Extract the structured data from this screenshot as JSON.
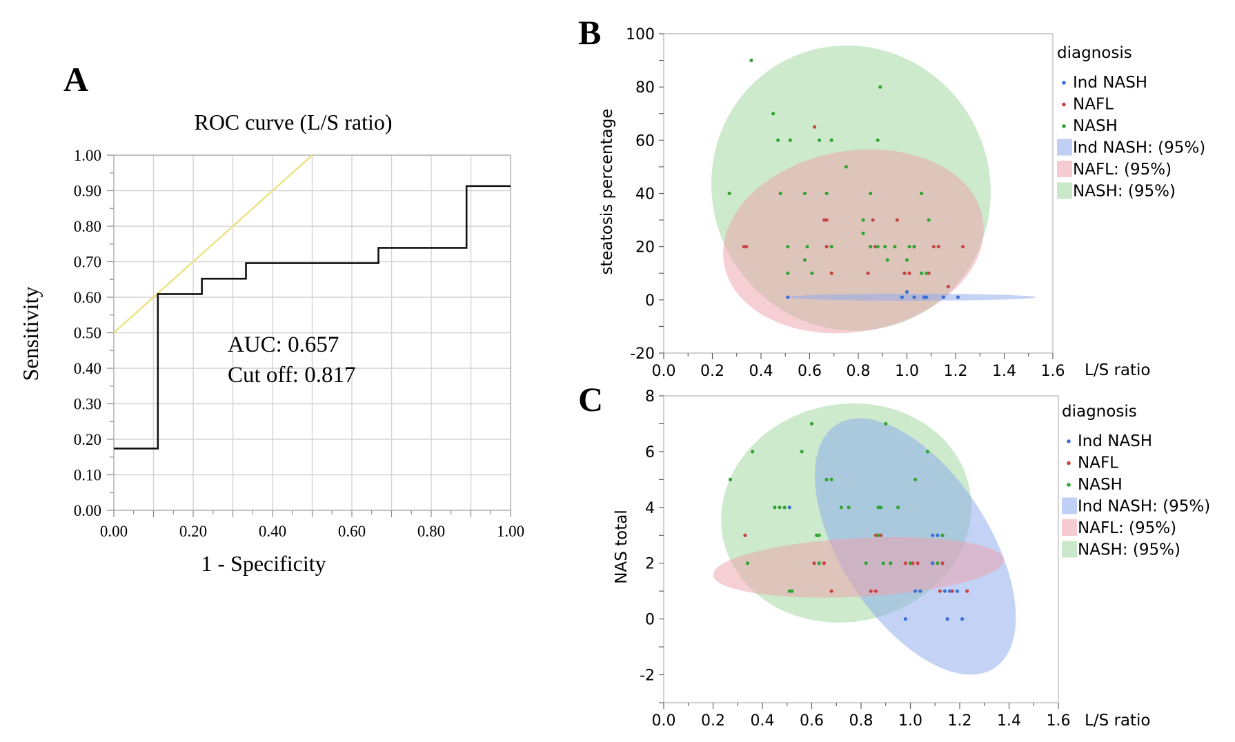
{
  "colors": {
    "ind_nash": "#3b6fd6",
    "nafl": "#c84444",
    "nash": "#33a333",
    "ind_nash_fill": "#8aa8ec",
    "nafl_fill": "#eea0ac",
    "nash_fill": "#9cd69c",
    "diagonal": "#ebe07a",
    "roc": "#111111",
    "grid": "#d3d3d3"
  },
  "chart_data": [
    {
      "id": "A",
      "panel_letter": "A",
      "type": "line",
      "title": "ROC curve (L/S ratio)",
      "xlabel": "1 - Specificity",
      "ylabel": "Sensitivity",
      "xlim": [
        0,
        1
      ],
      "ylim": [
        0,
        1
      ],
      "grid": true,
      "x_ticks": [
        "0.00",
        "0.20",
        "0.40",
        "0.60",
        "0.80",
        "1.00"
      ],
      "y_ticks": [
        "0.00",
        "0.10",
        "0.20",
        "0.30",
        "0.40",
        "0.50",
        "0.60",
        "0.70",
        "0.80",
        "0.90",
        "1.00"
      ],
      "annotations": [
        "AUC: 0.657",
        "Cut off: 0.817"
      ],
      "series": [
        {
          "name": "ROC",
          "step": true,
          "points": [
            [
              0,
              0.174
            ],
            [
              0.111,
              0.174
            ],
            [
              0.111,
              0.609
            ],
            [
              0.222,
              0.609
            ],
            [
              0.222,
              0.652
            ],
            [
              0.333,
              0.652
            ],
            [
              0.333,
              0.696
            ],
            [
              0.667,
              0.696
            ],
            [
              0.667,
              0.739
            ],
            [
              0.889,
              0.739
            ],
            [
              0.889,
              0.913
            ],
            [
              1.0,
              0.913
            ]
          ]
        },
        {
          "name": "Reference",
          "points": [
            [
              0,
              0.5
            ],
            [
              0.5,
              1.0
            ]
          ]
        }
      ]
    },
    {
      "id": "B",
      "panel_letter": "B",
      "type": "scatter",
      "xlabel": "L/S ratio",
      "ylabel": "steatosis percentage",
      "xlim": [
        0,
        1.6
      ],
      "ylim": [
        -20,
        100
      ],
      "x_ticks": [
        "0.0",
        "0.2",
        "0.4",
        "0.6",
        "0.8",
        "1.0",
        "1.2",
        "1.4",
        "1.6"
      ],
      "y_ticks": [
        "-20",
        "0",
        "20",
        "40",
        "60",
        "80",
        "100"
      ],
      "legend_title": "diagnosis",
      "legend": [
        "Ind NASH",
        "NAFL",
        "NASH",
        "Ind NASH: (95%)",
        "NAFL: (95%)",
        "NASH: (95%)"
      ],
      "ellipses": [
        {
          "group": "NASH",
          "cx": 0.77,
          "cy": 42,
          "rx": 0.57,
          "ry": 54,
          "angle": -27
        },
        {
          "group": "NAFL",
          "cx": 0.78,
          "cy": 22,
          "rx": 0.54,
          "ry": 34,
          "angle": -10
        },
        {
          "group": "Ind NASH",
          "cx": 1.02,
          "cy": 1,
          "rx": 0.51,
          "ry": 1.3,
          "angle": 0
        }
      ],
      "series": [
        {
          "name": "Ind NASH",
          "points": [
            [
              0.51,
              1
            ],
            [
              0.98,
              1
            ],
            [
              1.0,
              3
            ],
            [
              1.03,
              1
            ],
            [
              1.07,
              1
            ],
            [
              1.08,
              1
            ],
            [
              1.15,
              1
            ],
            [
              1.21,
              1
            ]
          ]
        },
        {
          "name": "NAFL",
          "points": [
            [
              0.33,
              20
            ],
            [
              0.34,
              20
            ],
            [
              0.62,
              65
            ],
            [
              0.66,
              30
            ],
            [
              0.67,
              20
            ],
            [
              0.67,
              30
            ],
            [
              0.69,
              10
            ],
            [
              0.84,
              10
            ],
            [
              0.85,
              20
            ],
            [
              0.86,
              30
            ],
            [
              0.87,
              20
            ],
            [
              0.96,
              30
            ],
            [
              0.99,
              10
            ],
            [
              1.01,
              10
            ],
            [
              1.03,
              20
            ],
            [
              1.09,
              10
            ],
            [
              1.11,
              20
            ],
            [
              1.13,
              20
            ],
            [
              1.17,
              5
            ],
            [
              1.23,
              20
            ]
          ]
        },
        {
          "name": "NASH",
          "points": [
            [
              0.36,
              90
            ],
            [
              0.89,
              80
            ],
            [
              0.45,
              70
            ],
            [
              0.47,
              60
            ],
            [
              0.52,
              60
            ],
            [
              0.64,
              60
            ],
            [
              0.69,
              60
            ],
            [
              0.88,
              60
            ],
            [
              0.75,
              50
            ],
            [
              0.27,
              40
            ],
            [
              0.48,
              40
            ],
            [
              0.58,
              40
            ],
            [
              0.67,
              40
            ],
            [
              0.85,
              40
            ],
            [
              1.06,
              40
            ],
            [
              0.82,
              30
            ],
            [
              0.82,
              25
            ],
            [
              1.09,
              30
            ],
            [
              0.51,
              20
            ],
            [
              0.59,
              20
            ],
            [
              0.69,
              20
            ],
            [
              0.85,
              20
            ],
            [
              0.88,
              20
            ],
            [
              0.91,
              20
            ],
            [
              0.95,
              20
            ],
            [
              1.01,
              20
            ],
            [
              1.03,
              20
            ],
            [
              0.58,
              15
            ],
            [
              0.92,
              15
            ],
            [
              1.0,
              15
            ],
            [
              0.51,
              10
            ],
            [
              0.61,
              10
            ],
            [
              1.06,
              10
            ],
            [
              1.08,
              10
            ]
          ]
        }
      ]
    },
    {
      "id": "C",
      "panel_letter": "C",
      "type": "scatter",
      "xlabel": "L/S ratio",
      "ylabel": "NAS total",
      "xlim": [
        0,
        1.6
      ],
      "ylim": [
        -3,
        8
      ],
      "x_ticks": [
        "0.0",
        "0.2",
        "0.4",
        "0.6",
        "0.8",
        "1.0",
        "1.2",
        "1.4",
        "1.6"
      ],
      "y_ticks": [
        "-2",
        "0",
        "2",
        "4",
        "6",
        "8"
      ],
      "legend_title": "diagnosis",
      "legend": [
        "Ind NASH",
        "NAFL",
        "NASH",
        "Ind NASH: (95%)",
        "NAFL: (95%)",
        "NASH: (95%)"
      ],
      "ellipses": [
        {
          "group": "NASH",
          "cx": 0.74,
          "cy": 3.8,
          "rx": 0.51,
          "ry": 3.9,
          "angle": -12
        },
        {
          "group": "Ind NASH",
          "cx": 1.02,
          "cy": 2.6,
          "rx": 0.3,
          "ry": 5.2,
          "angle": -33
        },
        {
          "group": "NAFL",
          "cx": 0.79,
          "cy": 1.85,
          "rx": 0.59,
          "ry": 1.05,
          "angle": -3
        }
      ],
      "series": [
        {
          "name": "Ind NASH",
          "points": [
            [
              0.51,
              4
            ],
            [
              0.98,
              0
            ],
            [
              1.02,
              1
            ],
            [
              1.04,
              1
            ],
            [
              1.09,
              2
            ],
            [
              1.09,
              3
            ],
            [
              1.11,
              3
            ],
            [
              1.14,
              1
            ],
            [
              1.16,
              1
            ],
            [
              1.15,
              0
            ],
            [
              1.21,
              0
            ],
            [
              1.19,
              1
            ]
          ]
        },
        {
          "name": "NAFL",
          "points": [
            [
              0.33,
              3
            ],
            [
              0.61,
              2
            ],
            [
              0.65,
              2
            ],
            [
              0.68,
              1
            ],
            [
              0.84,
              1
            ],
            [
              0.86,
              3
            ],
            [
              0.86,
              1
            ],
            [
              0.88,
              3
            ],
            [
              0.98,
              2
            ],
            [
              1.01,
              2
            ],
            [
              1.03,
              2
            ],
            [
              1.12,
              1
            ],
            [
              1.13,
              2
            ],
            [
              1.17,
              1
            ],
            [
              1.23,
              1
            ]
          ]
        },
        {
          "name": "NASH",
          "points": [
            [
              0.27,
              5
            ],
            [
              0.36,
              6
            ],
            [
              0.56,
              6
            ],
            [
              0.6,
              7
            ],
            [
              0.9,
              7
            ],
            [
              1.07,
              6
            ],
            [
              0.66,
              5
            ],
            [
              0.68,
              5
            ],
            [
              1.02,
              5
            ],
            [
              0.45,
              4
            ],
            [
              0.47,
              4
            ],
            [
              0.49,
              4
            ],
            [
              0.72,
              4
            ],
            [
              0.75,
              4
            ],
            [
              0.87,
              4
            ],
            [
              0.88,
              4
            ],
            [
              0.95,
              4
            ],
            [
              0.62,
              3
            ],
            [
              0.63,
              3
            ],
            [
              0.87,
              3
            ],
            [
              1.13,
              3
            ],
            [
              0.34,
              2
            ],
            [
              0.63,
              2
            ],
            [
              0.82,
              2
            ],
            [
              0.89,
              2
            ],
            [
              0.92,
              2
            ],
            [
              1.0,
              2
            ],
            [
              1.11,
              2
            ],
            [
              0.51,
              1
            ],
            [
              0.52,
              1
            ]
          ]
        }
      ]
    }
  ]
}
